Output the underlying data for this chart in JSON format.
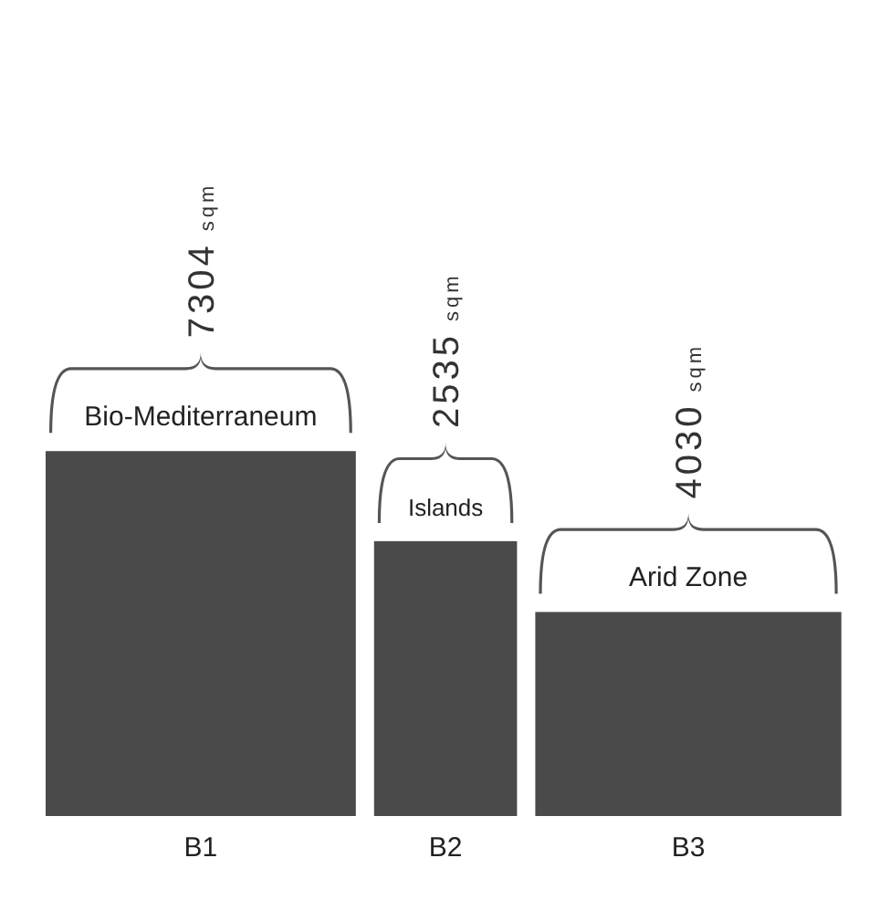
{
  "chart_data": {
    "type": "other",
    "categories": [
      "B1",
      "B2",
      "B3"
    ],
    "values": [
      7304,
      2535,
      4030
    ],
    "value_labels": [
      "7304 sqm",
      "2535 sqm",
      "4030 sqm"
    ],
    "colors": [
      "#4a4a4a",
      "#4a4a4a",
      "#4a4a4a"
    ],
    "annotations": [
      {
        "text": "Bio-Mediterraneum",
        "x": "B1"
      },
      {
        "text": "Islands",
        "x": "B2"
      },
      {
        "text": "Arid Zone",
        "x": "B3"
      }
    ]
  }
}
